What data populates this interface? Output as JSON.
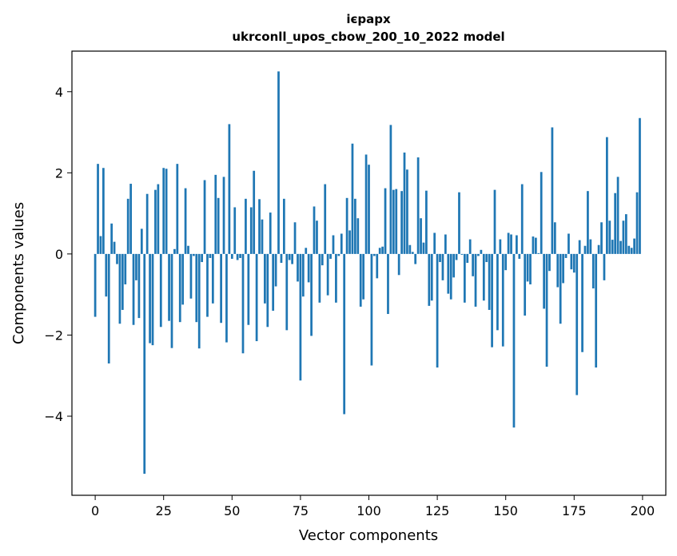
{
  "chart_data": {
    "type": "bar",
    "title": "ієрарх",
    "subtitle": "ukrconll_upos_cbow_200_10_2022 model",
    "xlabel": "Vector components",
    "ylabel": "Components values",
    "xlim": [
      -8.5,
      208.5
    ],
    "ylim": [
      -5.95,
      5.0
    ],
    "xticks": [
      0,
      25,
      50,
      75,
      100,
      125,
      150,
      175,
      200
    ],
    "xtick_labels": [
      "0",
      "25",
      "50",
      "75",
      "100",
      "125",
      "150",
      "175",
      "200"
    ],
    "yticks": [
      -4,
      -2,
      0,
      2,
      4
    ],
    "ytick_labels": [
      "−4",
      "−2",
      "0",
      "2",
      "4"
    ],
    "grid": false,
    "legend": "none",
    "bar_color": "#1f77b4",
    "x": [
      0,
      1,
      2,
      3,
      4,
      5,
      6,
      7,
      8,
      9,
      10,
      11,
      12,
      13,
      14,
      15,
      16,
      17,
      18,
      19,
      20,
      21,
      22,
      23,
      24,
      25,
      26,
      27,
      28,
      29,
      30,
      31,
      32,
      33,
      34,
      35,
      36,
      37,
      38,
      39,
      40,
      41,
      42,
      43,
      44,
      45,
      46,
      47,
      48,
      49,
      50,
      51,
      52,
      53,
      54,
      55,
      56,
      57,
      58,
      59,
      60,
      61,
      62,
      63,
      64,
      65,
      66,
      67,
      68,
      69,
      70,
      71,
      72,
      73,
      74,
      75,
      76,
      77,
      78,
      79,
      80,
      81,
      82,
      83,
      84,
      85,
      86,
      87,
      88,
      89,
      90,
      91,
      92,
      93,
      94,
      95,
      96,
      97,
      98,
      99,
      100,
      101,
      102,
      103,
      104,
      105,
      106,
      107,
      108,
      109,
      110,
      111,
      112,
      113,
      114,
      115,
      116,
      117,
      118,
      119,
      120,
      121,
      122,
      123,
      124,
      125,
      126,
      127,
      128,
      129,
      130,
      131,
      132,
      133,
      134,
      135,
      136,
      137,
      138,
      139,
      140,
      141,
      142,
      143,
      144,
      145,
      146,
      147,
      148,
      149,
      150,
      151,
      152,
      153,
      154,
      155,
      156,
      157,
      158,
      159,
      160,
      161,
      162,
      163,
      164,
      165,
      166,
      167,
      168,
      169,
      170,
      171,
      172,
      173,
      174,
      175,
      176,
      177,
      178,
      179,
      180,
      181,
      182,
      183,
      184,
      185,
      186,
      187,
      188,
      189,
      190,
      191,
      192,
      193,
      194,
      195,
      196,
      197,
      198,
      199
    ],
    "values": [
      -1.55,
      2.22,
      0.44,
      2.12,
      -1.05,
      -2.7,
      0.75,
      0.3,
      -0.25,
      -1.72,
      -1.38,
      -0.75,
      1.36,
      1.73,
      -1.75,
      -0.65,
      -1.58,
      0.62,
      -5.42,
      1.48,
      -2.2,
      -2.25,
      1.58,
      1.72,
      -1.8,
      2.12,
      2.1,
      -1.65,
      -2.32,
      0.12,
      2.22,
      -1.68,
      -1.25,
      1.62,
      0.2,
      -1.1,
      -0.05,
      -1.68,
      -2.33,
      -0.2,
      1.82,
      -1.55,
      -0.1,
      -1.22,
      1.95,
      1.38,
      -1.7,
      1.9,
      -2.18,
      3.2,
      -0.12,
      1.15,
      -0.15,
      -0.1,
      -2.45,
      1.36,
      -1.75,
      1.15,
      2.05,
      -2.15,
      1.35,
      0.85,
      -1.22,
      -1.8,
      1.02,
      -1.4,
      -0.8,
      4.5,
      -0.22,
      1.36,
      -1.88,
      -0.15,
      -0.25,
      0.78,
      -0.68,
      -3.12,
      -1.05,
      0.15,
      -0.7,
      -2.02,
      1.17,
      0.82,
      -1.2,
      -0.28,
      1.72,
      -1.02,
      -0.12,
      0.46,
      -1.2,
      -0.05,
      0.5,
      -3.95,
      1.38,
      0.58,
      2.72,
      1.36,
      0.88,
      -1.3,
      -1.12,
      2.45,
      2.2,
      -2.75,
      -0.05,
      -0.6,
      0.15,
      0.18,
      1.62,
      -1.48,
      3.18,
      1.58,
      1.6,
      -0.52,
      1.55,
      2.5,
      2.08,
      0.22,
      0.05,
      -0.25,
      2.38,
      0.88,
      0.28,
      1.56,
      -1.28,
      -1.15,
      0.52,
      -2.8,
      -0.2,
      -0.65,
      0.48,
      -0.98,
      -1.12,
      -0.58,
      -0.15,
      1.52,
      -0.02,
      -1.2,
      -0.22,
      0.36,
      -0.55,
      -1.3,
      -0.05,
      0.1,
      -1.15,
      -0.2,
      -1.38,
      -2.3,
      1.58,
      -1.88,
      0.36,
      -2.28,
      -0.4,
      0.52,
      0.48,
      -4.28,
      0.46,
      -0.12,
      1.72,
      -1.52,
      -0.68,
      -0.75,
      0.43,
      0.4,
      0.02,
      2.02,
      -1.35,
      -2.78,
      -0.42,
      3.12,
      0.78,
      -0.82,
      -1.72,
      -0.72,
      -0.1,
      0.5,
      -0.38,
      -0.46,
      -3.48,
      0.34,
      -2.42,
      0.2,
      1.55,
      0.36,
      -0.85,
      -2.8,
      0.22,
      0.78,
      -0.65,
      2.88,
      0.82,
      0.35,
      1.5,
      1.9,
      0.32,
      0.82,
      0.98,
      0.2,
      0.15,
      0.38,
      1.52,
      3.35
    ]
  }
}
